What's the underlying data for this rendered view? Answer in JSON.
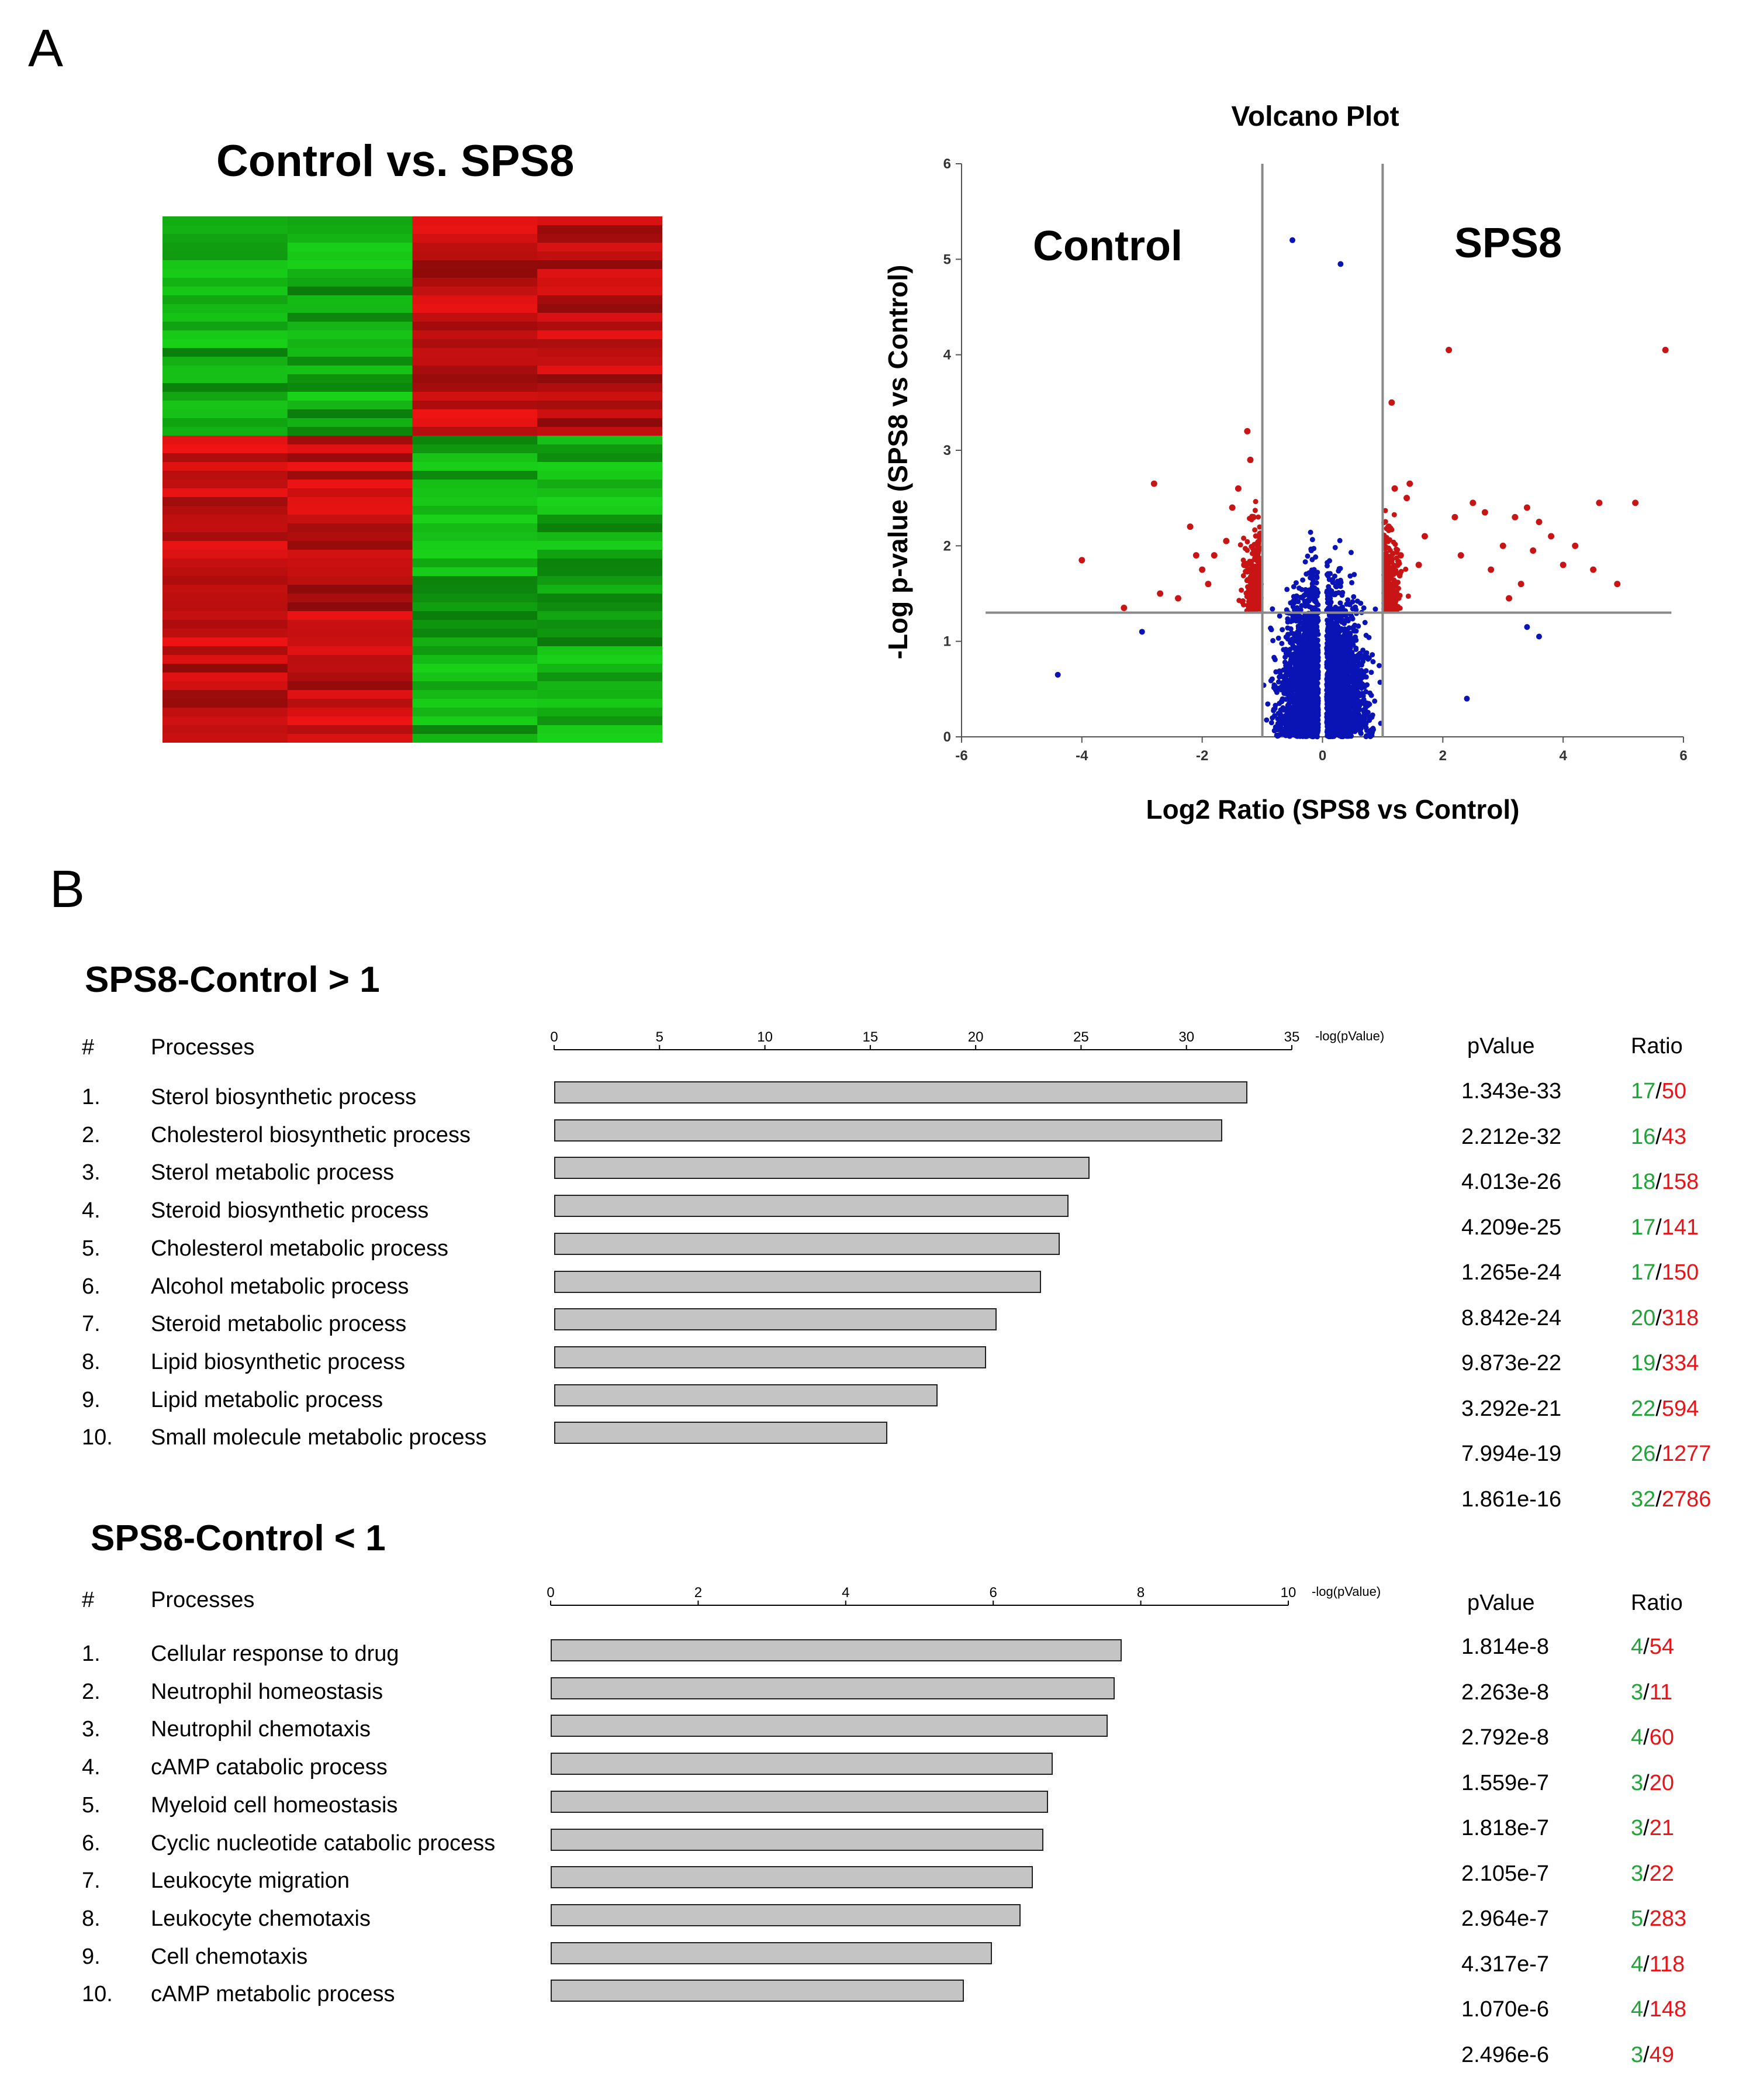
{
  "panel_a": {
    "letter": "A",
    "heatmap_title": "Control vs. SPS8",
    "heatmap_colors": {
      "bright_green": "#19d219",
      "dark_green": "#0a7a0a",
      "bright_red": "#f01414",
      "dark_red": "#8c0a0a"
    }
  },
  "panel_b": {
    "letter": "B"
  },
  "chart_data": [
    {
      "type": "scatter",
      "title": "Volcano Plot",
      "xlabel": "Log2 Ratio (SPS8 vs Control)",
      "ylabel": "-Log p-value (SPS8 vs Control)",
      "xlim": [
        -6,
        6
      ],
      "ylim": [
        0,
        6
      ],
      "xticks": [
        "-6",
        "-4",
        "-2",
        "0",
        "2",
        "4",
        "6"
      ],
      "yticks": [
        "0",
        "1",
        "2",
        "3",
        "4",
        "5",
        "6"
      ],
      "region_labels": {
        "left": "Control",
        "right": "SPS8"
      },
      "threshold_lines": {
        "vertical_x": [
          -1,
          1
        ],
        "horizontal_y": 1.3
      },
      "colors": {
        "non_significant": "#0a14b4",
        "significant": "#c81414",
        "lines": "#8a8a8a"
      },
      "significant_points": [
        [
          -4.0,
          1.85
        ],
        [
          -3.3,
          1.35
        ],
        [
          -2.8,
          2.65
        ],
        [
          -2.7,
          1.5
        ],
        [
          -2.4,
          1.45
        ],
        [
          -2.2,
          2.2
        ],
        [
          -2.1,
          1.9
        ],
        [
          -2.0,
          1.75
        ],
        [
          -1.9,
          1.6
        ],
        [
          -1.8,
          1.9
        ],
        [
          -1.6,
          2.05
        ],
        [
          -1.5,
          2.4
        ],
        [
          -1.4,
          2.6
        ],
        [
          -1.3,
          1.8
        ],
        [
          -1.25,
          3.2
        ],
        [
          -1.2,
          2.9
        ],
        [
          -1.15,
          2.3
        ],
        [
          -1.1,
          1.55
        ],
        [
          -1.05,
          2.1
        ],
        [
          1.05,
          1.6
        ],
        [
          1.1,
          2.2
        ],
        [
          1.15,
          3.5
        ],
        [
          1.2,
          2.6
        ],
        [
          1.3,
          1.9
        ],
        [
          1.4,
          2.5
        ],
        [
          1.45,
          2.65
        ],
        [
          1.6,
          1.8
        ],
        [
          1.7,
          2.1
        ],
        [
          2.1,
          4.05
        ],
        [
          2.2,
          2.3
        ],
        [
          2.3,
          1.9
        ],
        [
          2.5,
          2.45
        ],
        [
          2.7,
          2.35
        ],
        [
          2.8,
          1.75
        ],
        [
          3.0,
          2.0
        ],
        [
          3.1,
          1.45
        ],
        [
          3.2,
          2.3
        ],
        [
          3.3,
          1.6
        ],
        [
          3.4,
          2.4
        ],
        [
          3.5,
          1.95
        ],
        [
          3.6,
          2.25
        ],
        [
          3.8,
          2.1
        ],
        [
          4.0,
          1.8
        ],
        [
          4.2,
          2.0
        ],
        [
          4.5,
          1.75
        ],
        [
          4.6,
          2.45
        ],
        [
          4.9,
          1.6
        ],
        [
          5.2,
          2.45
        ],
        [
          5.7,
          4.05
        ]
      ],
      "outlier_points": [
        [
          -4.4,
          0.65
        ],
        [
          -3.0,
          1.1
        ],
        [
          2.4,
          0.4
        ],
        [
          3.4,
          1.15
        ],
        [
          3.6,
          1.05
        ],
        [
          -0.5,
          5.2
        ],
        [
          0.3,
          4.95
        ]
      ]
    },
    {
      "type": "bar",
      "orientation": "horizontal",
      "title": "SPS8-Control > 1",
      "col_num": "#",
      "col_process": "Processes",
      "col_pvalue": "pValue",
      "col_ratio": "Ratio",
      "axis_label": "-log(pValue)",
      "xlim": [
        0,
        35
      ],
      "xticks": [
        "0",
        "5",
        "10",
        "15",
        "20",
        "25",
        "30",
        "35"
      ],
      "categories": [
        {
          "num": "1.",
          "label": "Sterol biosynthetic process"
        },
        {
          "num": "2.",
          "label": "Cholesterol biosynthetic process"
        },
        {
          "num": "3.",
          "label": "Sterol metabolic process"
        },
        {
          "num": "4.",
          "label": "Steroid biosynthetic process"
        },
        {
          "num": "5.",
          "label": "Cholesterol metabolic process"
        },
        {
          "num": "6.",
          "label": "Alcohol metabolic process"
        },
        {
          "num": "7.",
          "label": "Steroid metabolic process"
        },
        {
          "num": "8.",
          "label": "Lipid biosynthetic process"
        },
        {
          "num": "9.",
          "label": "Lipid metabolic process"
        },
        {
          "num": "10.",
          "label": "Small molecule metabolic process"
        }
      ],
      "values": [
        32.9,
        31.7,
        25.4,
        24.4,
        24.0,
        23.1,
        21.0,
        20.5,
        18.2,
        15.8
      ],
      "pvalues": [
        "1.343e-33",
        "2.212e-32",
        "4.013e-26",
        "4.209e-25",
        "1.265e-24",
        "8.842e-24",
        "9.873e-22",
        "3.292e-21",
        "7.994e-19",
        "1.861e-16"
      ],
      "ratios": [
        {
          "num": "17",
          "den": "50"
        },
        {
          "num": "16",
          "den": "43"
        },
        {
          "num": "18",
          "den": "158"
        },
        {
          "num": "17",
          "den": "141"
        },
        {
          "num": "17",
          "den": "150"
        },
        {
          "num": "20",
          "den": "318"
        },
        {
          "num": "19",
          "den": "334"
        },
        {
          "num": "22",
          "den": "594"
        },
        {
          "num": "26",
          "den": "1277"
        },
        {
          "num": "32",
          "den": "2786"
        }
      ],
      "bar_color": "#c4c4c4"
    },
    {
      "type": "bar",
      "orientation": "horizontal",
      "title": "SPS8-Control < 1",
      "col_num": "#",
      "col_process": "Processes",
      "col_pvalue": "pValue",
      "col_ratio": "Ratio",
      "axis_label": "-log(pValue)",
      "xlim": [
        0,
        10
      ],
      "xticks": [
        "0",
        "2",
        "4",
        "6",
        "8",
        "10"
      ],
      "categories": [
        {
          "num": "1.",
          "label": "Cellular response to drug"
        },
        {
          "num": "2.",
          "label": "Neutrophil homeostasis"
        },
        {
          "num": "3.",
          "label": "Neutrophil chemotaxis"
        },
        {
          "num": "4.",
          "label": "cAMP catabolic process"
        },
        {
          "num": "5.",
          "label": "Myeloid cell homeostasis"
        },
        {
          "num": "6.",
          "label": "Cyclic nucleotide catabolic process"
        },
        {
          "num": "7.",
          "label": "Leukocyte migration"
        },
        {
          "num": "8.",
          "label": "Leukocyte chemotaxis"
        },
        {
          "num": "9.",
          "label": "Cell chemotaxis"
        },
        {
          "num": "10.",
          "label": "cAMP metabolic process"
        }
      ],
      "values": [
        7.74,
        7.65,
        7.55,
        6.81,
        6.74,
        6.68,
        6.54,
        6.37,
        5.98,
        5.6
      ],
      "pvalues": [
        "1.814e-8",
        "2.263e-8",
        "2.792e-8",
        "1.559e-7",
        "1.818e-7",
        "2.105e-7",
        "2.964e-7",
        "4.317e-7",
        "1.070e-6",
        "2.496e-6"
      ],
      "ratios": [
        {
          "num": "4",
          "den": "54"
        },
        {
          "num": "3",
          "den": "11"
        },
        {
          "num": "4",
          "den": "60"
        },
        {
          "num": "3",
          "den": "20"
        },
        {
          "num": "3",
          "den": "21"
        },
        {
          "num": "3",
          "den": "22"
        },
        {
          "num": "5",
          "den": "283"
        },
        {
          "num": "4",
          "den": "118"
        },
        {
          "num": "4",
          "den": "148"
        },
        {
          "num": "3",
          "den": "49"
        }
      ],
      "bar_color": "#c4c4c4"
    }
  ]
}
